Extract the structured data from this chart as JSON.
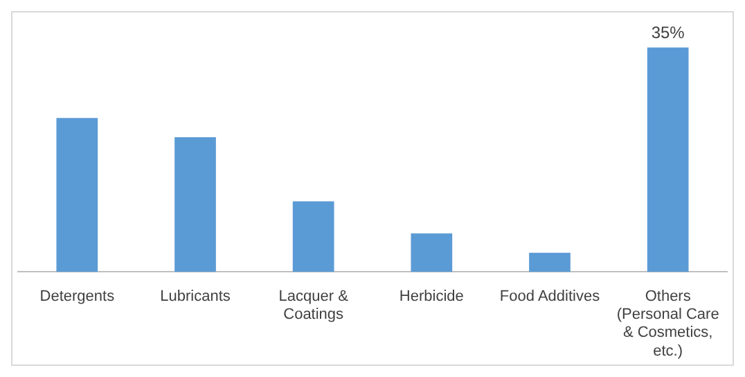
{
  "chart_data": {
    "type": "bar",
    "categories": [
      "Detergents",
      "Lubricants",
      "Lacquer & Coatings",
      "Herbicide",
      "Food Additives",
      "Others (Personal Care & Cosmetics, etc.)"
    ],
    "values": [
      24,
      21,
      11,
      6,
      3,
      35
    ],
    "value_labels": [
      null,
      null,
      null,
      null,
      null,
      "35%"
    ],
    "color": "#5b9bd5",
    "grid": false,
    "legend": false
  }
}
